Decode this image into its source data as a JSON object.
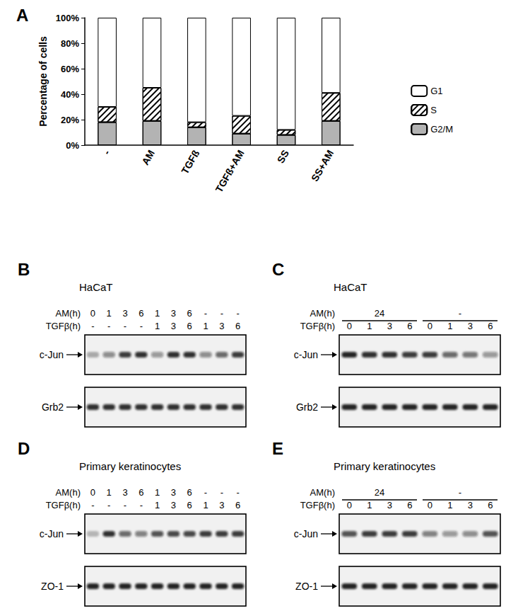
{
  "chart_data": {
    "type": "bar",
    "title": "A",
    "ylabel": "Percentage of cells",
    "stacked": true,
    "categories": [
      "-",
      "AM",
      "TGFß",
      "TGFß+AM",
      "SS",
      "SS+AM"
    ],
    "series": [
      {
        "name": "G1",
        "color": "#ffffff",
        "values": [
          70,
          55,
          82,
          77,
          88,
          59
        ]
      },
      {
        "name": "S",
        "color": "#ffffff",
        "values": [
          12,
          26,
          4,
          14,
          4,
          22
        ]
      },
      {
        "name": "G2/M",
        "color": "#b3b3b3",
        "values": [
          18,
          19,
          14,
          9,
          8,
          19
        ]
      }
    ],
    "ylim": [
      0,
      100
    ],
    "yticks": [
      {
        "value": 0,
        "label": "0%"
      },
      {
        "value": 20,
        "label": "20%"
      },
      {
        "value": 40,
        "label": "40%"
      },
      {
        "value": 60,
        "label": "60%"
      },
      {
        "value": 80,
        "label": "80%"
      },
      {
        "value": 100,
        "label": "100%"
      }
    ],
    "grid": false,
    "legend": "right"
  },
  "panels": [
    {
      "label": "B",
      "title": "HaCaT",
      "rows": [
        {
          "name": "AM(h)",
          "cells": [
            "0",
            "1",
            "3",
            "6",
            "1",
            "3",
            "6",
            "-",
            "-",
            "-"
          ]
        },
        {
          "name": "TGFβ(h)",
          "cells": [
            "-",
            "-",
            "-",
            "-",
            "1",
            "3",
            "6",
            "1",
            "3",
            "6"
          ]
        }
      ],
      "blots": [
        {
          "name": "c-Jun",
          "intensities": [
            0.3,
            0.45,
            0.8,
            0.85,
            0.4,
            0.85,
            0.85,
            0.45,
            0.6,
            0.8
          ]
        },
        {
          "name": "Grb2",
          "intensities": [
            0.85,
            0.85,
            0.85,
            0.85,
            0.85,
            0.85,
            0.85,
            0.85,
            0.85,
            0.85
          ]
        }
      ]
    },
    {
      "label": "C",
      "title": "HaCaT",
      "rows": [
        {
          "name": "AM(h)",
          "groups": [
            {
              "label": "24",
              "lanes": 4
            },
            {
              "label": "-",
              "lanes": 4
            }
          ]
        },
        {
          "name": "TGFβ(h)",
          "cells": [
            "0",
            "1",
            "3",
            "6",
            "0",
            "1",
            "3",
            "6"
          ]
        }
      ],
      "blots": [
        {
          "name": "c-Jun",
          "intensities": [
            0.9,
            0.85,
            0.85,
            0.8,
            0.8,
            0.6,
            0.55,
            0.4
          ]
        },
        {
          "name": "Grb2",
          "intensities": [
            0.9,
            0.9,
            0.9,
            0.9,
            0.9,
            0.9,
            0.9,
            0.9
          ]
        }
      ]
    },
    {
      "label": "D",
      "title": "Primary keratinocytes",
      "rows": [
        {
          "name": "AM(h)",
          "cells": [
            "0",
            "1",
            "3",
            "6",
            "1",
            "3",
            "6",
            "-",
            "-",
            "-"
          ]
        },
        {
          "name": "TGFβ(h)",
          "cells": [
            "-",
            "-",
            "-",
            "-",
            "1",
            "3",
            "6",
            "1",
            "3",
            "6"
          ]
        }
      ],
      "blots": [
        {
          "name": "c-Jun",
          "intensities": [
            0.25,
            0.85,
            0.6,
            0.5,
            0.7,
            0.75,
            0.75,
            0.8,
            0.8,
            0.8
          ]
        },
        {
          "name": "ZO-1",
          "intensities": [
            0.9,
            0.9,
            0.9,
            0.9,
            0.9,
            0.9,
            0.9,
            0.9,
            0.9,
            0.9
          ]
        }
      ]
    },
    {
      "label": "E",
      "title": "Primary keratinocytes",
      "rows": [
        {
          "name": "AM(h)",
          "groups": [
            {
              "label": "24",
              "lanes": 4
            },
            {
              "label": "-",
              "lanes": 4
            }
          ]
        },
        {
          "name": "TGFβ(h)",
          "cells": [
            "0",
            "1",
            "3",
            "6",
            "0",
            "1",
            "3",
            "6"
          ]
        }
      ],
      "blots": [
        {
          "name": "c-Jun",
          "intensities": [
            0.7,
            0.8,
            0.8,
            0.8,
            0.5,
            0.4,
            0.45,
            0.7
          ]
        },
        {
          "name": "ZO-1",
          "intensities": [
            0.9,
            0.9,
            0.9,
            0.9,
            0.9,
            0.9,
            0.9,
            0.9
          ]
        }
      ]
    }
  ]
}
